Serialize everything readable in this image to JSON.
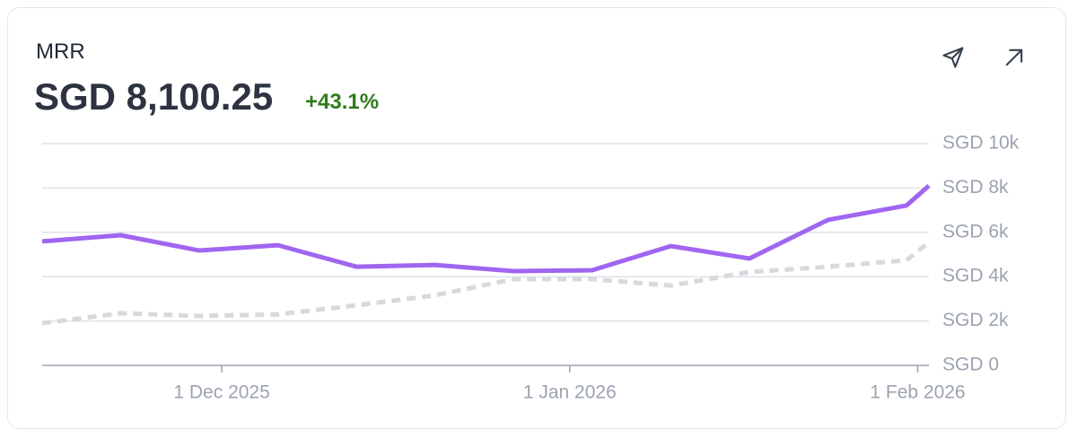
{
  "header": {
    "label": "MRR",
    "value": "SGD 8,100.25",
    "change": "+43.1%"
  },
  "chart_data": {
    "type": "line",
    "x": [
      "2025-11-15",
      "2025-11-22",
      "2025-11-29",
      "2025-12-06",
      "2025-12-13",
      "2025-12-20",
      "2025-12-27",
      "2026-01-03",
      "2026-01-10",
      "2026-01-17",
      "2026-01-24",
      "2026-01-31",
      "2026-02-02"
    ],
    "series": [
      {
        "color": "#a066f0",
        "style": "solid",
        "values": [
          5590,
          5870,
          5180,
          5420,
          4450,
          4530,
          4250,
          4290,
          5380,
          4820,
          6560,
          7210,
          8100.25
        ]
      },
      {
        "color": "#d6d9de",
        "style": "dashed",
        "values": [
          1900,
          2350,
          2230,
          2300,
          2710,
          3160,
          3890,
          3890,
          3600,
          4210,
          4450,
          4740,
          5550
        ]
      }
    ],
    "xlim": [
      "2025-11-15",
      "2026-02-02"
    ],
    "xticks": [
      {
        "value": "2025-12-01",
        "label": "1 Dec 2025"
      },
      {
        "value": "2026-01-01",
        "label": "1 Jan 2026"
      },
      {
        "value": "2026-02-01",
        "label": "1 Feb 2026"
      }
    ],
    "ylim": [
      0,
      10000
    ],
    "yticks": [
      {
        "value": 0,
        "label": "SGD 0"
      },
      {
        "value": 2000,
        "label": "SGD 2k"
      },
      {
        "value": 4000,
        "label": "SGD 4k"
      },
      {
        "value": 6000,
        "label": "SGD 6k"
      },
      {
        "value": 8000,
        "label": "SGD 8k"
      },
      {
        "value": 10000,
        "label": "SGD 10k"
      }
    ],
    "grid": true
  }
}
